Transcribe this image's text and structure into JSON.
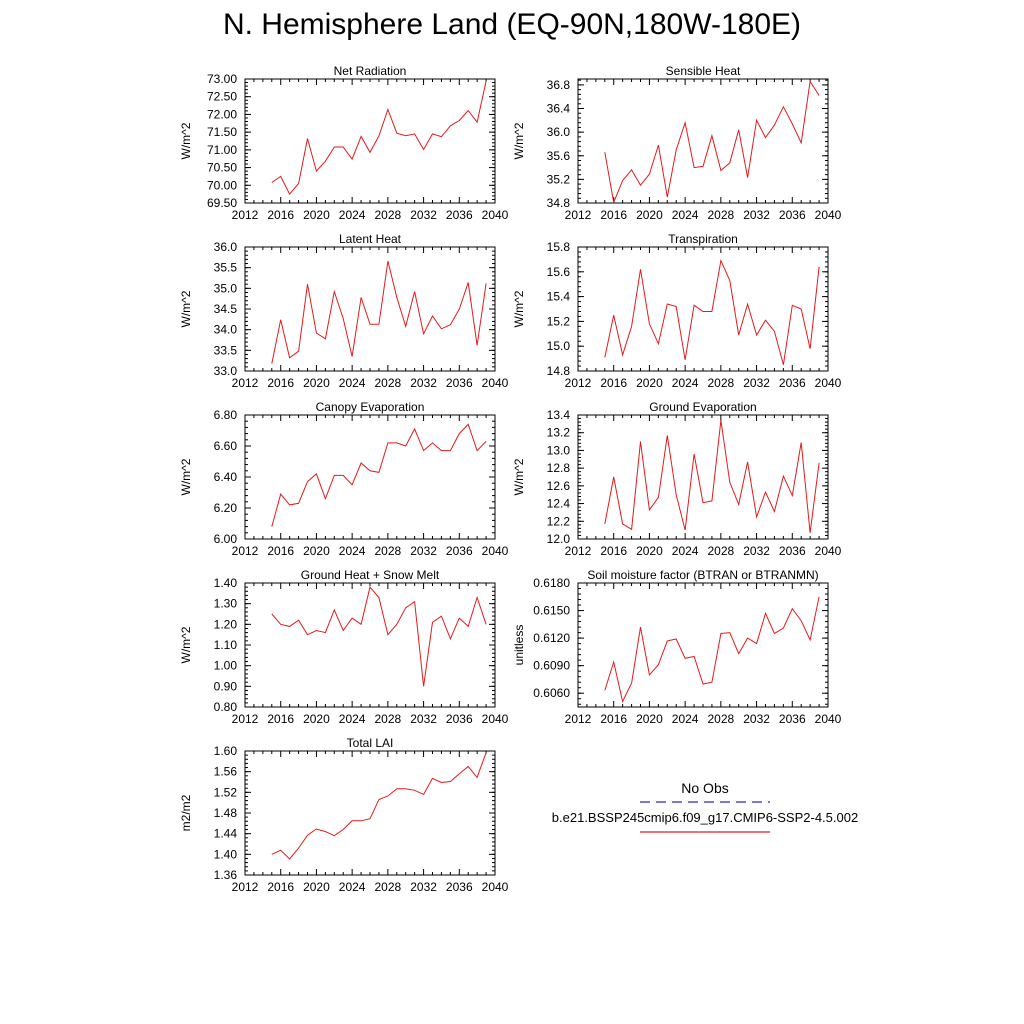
{
  "title": "N. Hemisphere Land (EQ-90N,180W-180E)",
  "legend": {
    "obs_label": "No Obs",
    "obs_color": "#2b2bb8",
    "case_label": "b.e21.BSSP245cmip6.f09_g17.CMIP6-SSP2-4.5.002",
    "case_color": "#e31a1c"
  },
  "line_color": "#e31a1c",
  "chart_data": [
    {
      "type": "line",
      "title": "Net Radiation",
      "ylabel": "W/m^2",
      "xlim": [
        2012,
        2040
      ],
      "ylim": [
        69.5,
        73.0
      ],
      "xticks": [
        2012,
        2016,
        2020,
        2024,
        2028,
        2032,
        2036,
        2040
      ],
      "yticks": [
        "69.50",
        "70.00",
        "70.50",
        "71.00",
        "71.50",
        "72.00",
        "72.50",
        "73.00"
      ],
      "x": [
        2015,
        2016,
        2017,
        2018,
        2019,
        2020,
        2021,
        2022,
        2023,
        2024,
        2025,
        2026,
        2027,
        2028,
        2029,
        2030,
        2031,
        2032,
        2033,
        2034,
        2035,
        2036,
        2037,
        2038,
        2039
      ],
      "y": [
        70.08,
        70.25,
        69.75,
        70.05,
        71.32,
        70.4,
        70.68,
        71.08,
        71.08,
        70.74,
        71.38,
        70.93,
        71.39,
        72.14,
        71.47,
        71.4,
        71.45,
        71.01,
        71.45,
        71.37,
        71.68,
        71.83,
        72.11,
        71.78,
        72.94
      ]
    },
    {
      "type": "line",
      "title": "Sensible Heat",
      "ylabel": "W/m^2",
      "xlim": [
        2012,
        2040
      ],
      "ylim": [
        34.8,
        36.9
      ],
      "xticks": [
        2012,
        2016,
        2020,
        2024,
        2028,
        2032,
        2036,
        2040
      ],
      "yticks": [
        "34.8",
        "35.2",
        "35.6",
        "36.0",
        "36.4",
        "36.8"
      ],
      "x": [
        2015,
        2016,
        2017,
        2018,
        2019,
        2020,
        2021,
        2022,
        2023,
        2024,
        2025,
        2026,
        2027,
        2028,
        2029,
        2030,
        2031,
        2032,
        2033,
        2034,
        2035,
        2036,
        2037,
        2038,
        2039
      ],
      "y": [
        35.66,
        34.81,
        35.18,
        35.36,
        35.1,
        35.29,
        35.78,
        34.9,
        35.7,
        36.16,
        35.4,
        35.42,
        35.94,
        35.35,
        35.48,
        36.04,
        35.23,
        36.2,
        35.91,
        36.12,
        36.43,
        36.14,
        35.82,
        36.86,
        36.62
      ]
    },
    {
      "type": "line",
      "title": "Latent Heat",
      "ylabel": "W/m^2",
      "xlim": [
        2012,
        2040
      ],
      "ylim": [
        33.0,
        36.0
      ],
      "xticks": [
        2012,
        2016,
        2020,
        2024,
        2028,
        2032,
        2036,
        2040
      ],
      "yticks": [
        "33.0",
        "33.5",
        "34.0",
        "34.5",
        "35.0",
        "35.5",
        "36.0"
      ],
      "x": [
        2015,
        2016,
        2017,
        2018,
        2019,
        2020,
        2021,
        2022,
        2023,
        2024,
        2025,
        2026,
        2027,
        2028,
        2029,
        2030,
        2031,
        2032,
        2033,
        2034,
        2035,
        2036,
        2037,
        2038,
        2039
      ],
      "y": [
        33.18,
        34.24,
        33.32,
        33.48,
        35.1,
        33.92,
        33.78,
        34.92,
        34.27,
        33.35,
        34.78,
        34.13,
        34.13,
        35.66,
        34.78,
        34.08,
        34.92,
        33.9,
        34.33,
        34.02,
        34.12,
        34.5,
        35.14,
        33.62,
        35.12
      ]
    },
    {
      "type": "line",
      "title": "Transpiration",
      "ylabel": "W/m^2",
      "xlim": [
        2012,
        2040
      ],
      "ylim": [
        14.8,
        15.8
      ],
      "xticks": [
        2012,
        2016,
        2020,
        2024,
        2028,
        2032,
        2036,
        2040
      ],
      "yticks": [
        "14.8",
        "15.0",
        "15.2",
        "15.4",
        "15.6",
        "15.8"
      ],
      "x": [
        2015,
        2016,
        2017,
        2018,
        2019,
        2020,
        2021,
        2022,
        2023,
        2024,
        2025,
        2026,
        2027,
        2028,
        2029,
        2030,
        2031,
        2032,
        2033,
        2034,
        2035,
        2036,
        2037,
        2038,
        2039
      ],
      "y": [
        14.91,
        15.25,
        14.93,
        15.16,
        15.62,
        15.18,
        15.02,
        15.34,
        15.32,
        14.89,
        15.33,
        15.28,
        15.28,
        15.69,
        15.53,
        15.09,
        15.34,
        15.09,
        15.21,
        15.12,
        14.85,
        15.33,
        15.3,
        14.98,
        15.64
      ]
    },
    {
      "type": "line",
      "title": "Canopy Evaporation",
      "ylabel": "W/m^2",
      "xlim": [
        2012,
        2040
      ],
      "ylim": [
        6.0,
        6.8
      ],
      "xticks": [
        2012,
        2016,
        2020,
        2024,
        2028,
        2032,
        2036,
        2040
      ],
      "yticks": [
        "6.00",
        "6.20",
        "6.40",
        "6.60",
        "6.80"
      ],
      "x": [
        2015,
        2016,
        2017,
        2018,
        2019,
        2020,
        2021,
        2022,
        2023,
        2024,
        2025,
        2026,
        2027,
        2028,
        2029,
        2030,
        2031,
        2032,
        2033,
        2034,
        2035,
        2036,
        2037,
        2038,
        2039
      ],
      "y": [
        6.08,
        6.29,
        6.22,
        6.23,
        6.37,
        6.42,
        6.26,
        6.41,
        6.41,
        6.35,
        6.49,
        6.44,
        6.43,
        6.62,
        6.62,
        6.6,
        6.71,
        6.57,
        6.62,
        6.57,
        6.57,
        6.68,
        6.74,
        6.57,
        6.63
      ]
    },
    {
      "type": "line",
      "title": "Ground Evaporation",
      "ylabel": "W/m^2",
      "xlim": [
        2012,
        2040
      ],
      "ylim": [
        12.0,
        13.4
      ],
      "xticks": [
        2012,
        2016,
        2020,
        2024,
        2028,
        2032,
        2036,
        2040
      ],
      "yticks": [
        "12.0",
        "12.2",
        "12.4",
        "12.6",
        "12.8",
        "13.0",
        "13.2",
        "13.4"
      ],
      "x": [
        2015,
        2016,
        2017,
        2018,
        2019,
        2020,
        2021,
        2022,
        2023,
        2024,
        2025,
        2026,
        2027,
        2028,
        2029,
        2030,
        2031,
        2032,
        2033,
        2034,
        2035,
        2036,
        2037,
        2038,
        2039
      ],
      "y": [
        12.17,
        12.7,
        12.17,
        12.11,
        13.1,
        12.33,
        12.47,
        13.17,
        12.5,
        12.1,
        12.96,
        12.41,
        12.43,
        13.34,
        12.64,
        12.39,
        12.87,
        12.25,
        12.53,
        12.31,
        12.71,
        12.49,
        13.09,
        12.07,
        12.86
      ]
    },
    {
      "type": "line",
      "title": "Ground Heat + Snow Melt",
      "ylabel": "W/m^2",
      "xlim": [
        2012,
        2040
      ],
      "ylim": [
        0.8,
        1.4
      ],
      "xticks": [
        2012,
        2016,
        2020,
        2024,
        2028,
        2032,
        2036,
        2040
      ],
      "yticks": [
        "0.80",
        "0.90",
        "1.00",
        "1.10",
        "1.20",
        "1.30",
        "1.40"
      ],
      "x": [
        2015,
        2016,
        2017,
        2018,
        2019,
        2020,
        2021,
        2022,
        2023,
        2024,
        2025,
        2026,
        2027,
        2028,
        2029,
        2030,
        2031,
        2032,
        2033,
        2034,
        2035,
        2036,
        2037,
        2038,
        2039
      ],
      "y": [
        1.25,
        1.2,
        1.19,
        1.22,
        1.15,
        1.17,
        1.16,
        1.27,
        1.17,
        1.23,
        1.2,
        1.38,
        1.33,
        1.15,
        1.2,
        1.28,
        1.31,
        0.9,
        1.21,
        1.24,
        1.13,
        1.23,
        1.19,
        1.33,
        1.2
      ]
    },
    {
      "type": "line",
      "title": "Soil moisture factor (BTRAN or BTRANMN)",
      "ylabel": "unitless",
      "xlim": [
        2012,
        2040
      ],
      "ylim": [
        0.6045,
        0.618
      ],
      "xticks": [
        2012,
        2016,
        2020,
        2024,
        2028,
        2032,
        2036,
        2040
      ],
      "yticks": [
        "0.6060",
        "0.6090",
        "0.6120",
        "0.6150",
        "0.6180"
      ],
      "x": [
        2015,
        2016,
        2017,
        2018,
        2019,
        2020,
        2021,
        2022,
        2023,
        2024,
        2025,
        2026,
        2027,
        2028,
        2029,
        2030,
        2031,
        2032,
        2033,
        2034,
        2035,
        2036,
        2037,
        2038,
        2039
      ],
      "y": [
        0.6063,
        0.6094,
        0.6051,
        0.6071,
        0.6132,
        0.608,
        0.6091,
        0.6117,
        0.6119,
        0.6098,
        0.61,
        0.607,
        0.6072,
        0.6125,
        0.6126,
        0.6103,
        0.612,
        0.6114,
        0.6147,
        0.6125,
        0.6131,
        0.6152,
        0.6139,
        0.6118,
        0.6165
      ]
    },
    {
      "type": "line",
      "title": "Total LAI",
      "ylabel": "m2/m2",
      "xlim": [
        2012,
        2040
      ],
      "ylim": [
        1.36,
        1.6
      ],
      "xticks": [
        2012,
        2016,
        2020,
        2024,
        2028,
        2032,
        2036,
        2040
      ],
      "yticks": [
        "1.36",
        "1.40",
        "1.44",
        "1.48",
        "1.52",
        "1.56",
        "1.60"
      ],
      "x": [
        2015,
        2016,
        2017,
        2018,
        2019,
        2020,
        2021,
        2022,
        2023,
        2024,
        2025,
        2026,
        2027,
        2028,
        2029,
        2030,
        2031,
        2032,
        2033,
        2034,
        2035,
        2036,
        2037,
        2038,
        2039
      ],
      "y": [
        1.4,
        1.408,
        1.391,
        1.412,
        1.437,
        1.449,
        1.444,
        1.436,
        1.448,
        1.465,
        1.465,
        1.469,
        1.506,
        1.513,
        1.527,
        1.527,
        1.524,
        1.516,
        1.547,
        1.539,
        1.541,
        1.556,
        1.57,
        1.549,
        1.597
      ]
    }
  ]
}
